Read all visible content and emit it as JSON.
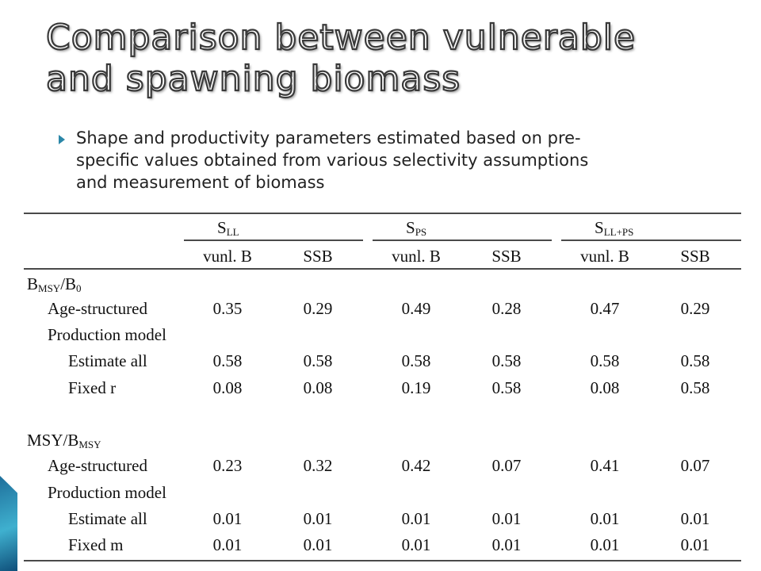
{
  "slide": {
    "title_lines": [
      "Comparison between vulnerable",
      "and spawning biomass"
    ],
    "bullet": "Shape and productivity parameters estimated based on pre-specific values obtained from various selectivity assumptions and measurement of biomass",
    "bullet_lines": [
      "Shape and productivity parameters estimated based on pre-",
      "specific values obtained from various selectivity assumptions",
      "and measurement of biomass"
    ]
  },
  "table": {
    "groups": [
      {
        "main": "S",
        "sub": "LL"
      },
      {
        "main": "S",
        "sub": "PS"
      },
      {
        "main": "S",
        "sub": "LL+PS"
      }
    ],
    "subheaders": [
      "vunl. B",
      "SSB",
      "vunl. B",
      "SSB",
      "vunl. B",
      "SSB"
    ],
    "sections": [
      {
        "label_main": "B",
        "label_sub": "MSY",
        "label_rest": "/B",
        "label_sub2": "0",
        "rows": [
          {
            "label": "Age-structured",
            "values": [
              "0.35",
              "0.29",
              "0.49",
              "0.28",
              "0.47",
              "0.29"
            ]
          },
          {
            "label": "Production model",
            "values": []
          },
          {
            "label": "Estimate all",
            "values": [
              "0.58",
              "0.58",
              "0.58",
              "0.58",
              "0.58",
              "0.58"
            ]
          },
          {
            "label": "Fixed r",
            "values": [
              "0.08",
              "0.08",
              "0.19",
              "0.58",
              "0.08",
              "0.58"
            ]
          }
        ]
      },
      {
        "label_main": "MSY/B",
        "label_sub": "MSY",
        "label_rest": "",
        "label_sub2": "",
        "rows": [
          {
            "label": "Age-structured",
            "values": [
              "0.23",
              "0.32",
              "0.42",
              "0.07",
              "0.41",
              "0.07"
            ]
          },
          {
            "label": "Production model",
            "values": []
          },
          {
            "label": "Estimate all",
            "values": [
              "0.01",
              "0.01",
              "0.01",
              "0.01",
              "0.01",
              "0.01"
            ]
          },
          {
            "label": "Fixed m",
            "values": [
              "0.01",
              "0.01",
              "0.01",
              "0.01",
              "0.01",
              "0.01"
            ]
          }
        ]
      }
    ]
  }
}
